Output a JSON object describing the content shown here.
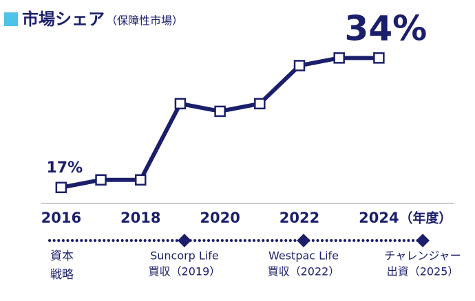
{
  "chart_data": {
    "type": "line",
    "title": "市場シェア",
    "subtitle": "（保障性市場）",
    "x": [
      2016,
      2017,
      2018,
      2019,
      2020,
      2021,
      2022,
      2023,
      2024
    ],
    "values": [
      17,
      18,
      18,
      28,
      27,
      28,
      33,
      34,
      34
    ],
    "value_labels": [
      "17%",
      null,
      null,
      null,
      null,
      null,
      null,
      null,
      "34%"
    ],
    "color": "#1b1f6b",
    "xlim": [
      2015.5,
      2025.9
    ],
    "xticks": [
      2016,
      2018,
      2020,
      2022,
      2024
    ],
    "xlabel": "（年度）",
    "ylim": [
      15,
      38
    ],
    "timeline": {
      "label": [
        "資本",
        "戦略"
      ],
      "events": [
        {
          "x": 2019,
          "lines": [
            "Suncorp Life",
            "買収（2019）"
          ]
        },
        {
          "x": 2022,
          "lines": [
            "Westpac Life",
            "買収（2022）"
          ]
        },
        {
          "x": 2025,
          "lines": [
            "チャレンジャー",
            "出資（2025）"
          ]
        }
      ]
    }
  }
}
